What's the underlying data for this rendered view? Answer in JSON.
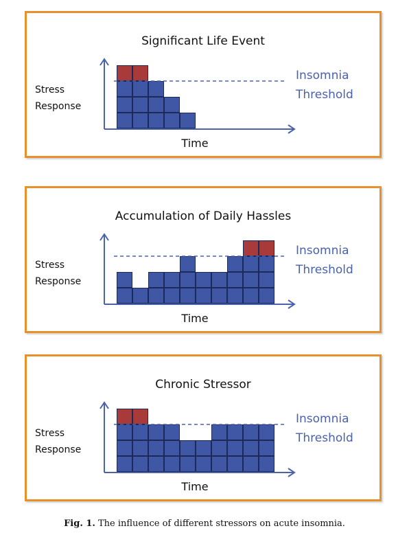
{
  "figure": {
    "caption_label": "Fig. 1.",
    "caption_text": "The influence of different stressors on acute insomnia."
  },
  "colors": {
    "panel_border": "#e8902a",
    "stress_block": "#3f57a4",
    "over_threshold_block": "#a83a3a",
    "threshold_line": "#4a62ad",
    "threshold_label": "#4a62ad",
    "axis": "#4a62ad"
  },
  "shared_labels": {
    "ylabel_line1": "Stress",
    "ylabel_line2": "Response",
    "xlabel": "Time",
    "threshold_line1": "Insomnia",
    "threshold_line2": "Threshold"
  },
  "chart_data": [
    {
      "type": "bar",
      "title": "Significant Life Event",
      "xlabel": "Time",
      "ylabel": "Stress Response",
      "threshold_level": 3,
      "threshold_label": "Insomnia Threshold",
      "values": [
        4,
        4,
        3,
        2,
        1
      ]
    },
    {
      "type": "bar",
      "title": "Accumulation of Daily Hassles",
      "xlabel": "Time",
      "ylabel": "Stress Response",
      "threshold_level": 3,
      "threshold_label": "Insomnia Threshold",
      "values": [
        2,
        1,
        2,
        2,
        3,
        2,
        2,
        3,
        4,
        4
      ]
    },
    {
      "type": "bar",
      "title": "Chronic Stressor",
      "xlabel": "Time",
      "ylabel": "Stress Response",
      "threshold_level": 3,
      "threshold_label": "Insomnia Threshold",
      "values": [
        4,
        4,
        3,
        3,
        2,
        2,
        3,
        3,
        3,
        3
      ]
    }
  ]
}
